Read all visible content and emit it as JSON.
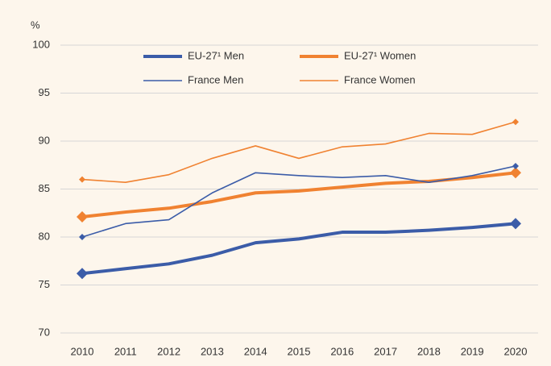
{
  "chart_data": {
    "type": "line",
    "y_label": "%",
    "categories": [
      "2010",
      "2011",
      "2012",
      "2013",
      "2014",
      "2015",
      "2016",
      "2017",
      "2018",
      "2019",
      "2020"
    ],
    "series": [
      {
        "name": "EU-27¹ Men",
        "color": "#3b5ca8",
        "width": 4,
        "values": [
          76.2,
          76.7,
          77.2,
          78.1,
          79.4,
          79.8,
          80.5,
          80.5,
          80.7,
          81.0,
          81.4
        ]
      },
      {
        "name": "EU-27¹ Women",
        "color": "#f08231",
        "width": 4,
        "values": [
          82.1,
          82.6,
          83.0,
          83.7,
          84.6,
          84.8,
          85.2,
          85.6,
          85.8,
          86.2,
          86.7
        ]
      },
      {
        "name": "France Men",
        "color": "#3b5ca8",
        "width": 1.6,
        "values": [
          80.0,
          81.4,
          81.8,
          84.6,
          86.7,
          86.4,
          86.2,
          86.4,
          85.7,
          86.4,
          87.4
        ]
      },
      {
        "name": "France Women",
        "color": "#f08231",
        "width": 1.6,
        "values": [
          86.0,
          85.7,
          86.5,
          88.2,
          89.5,
          88.2,
          89.4,
          89.7,
          90.8,
          90.7,
          92.0
        ]
      }
    ],
    "ylim": [
      70,
      100
    ],
    "yticks": [
      70,
      75,
      80,
      85,
      90,
      95,
      100
    ],
    "grid": true,
    "legend": "top"
  }
}
